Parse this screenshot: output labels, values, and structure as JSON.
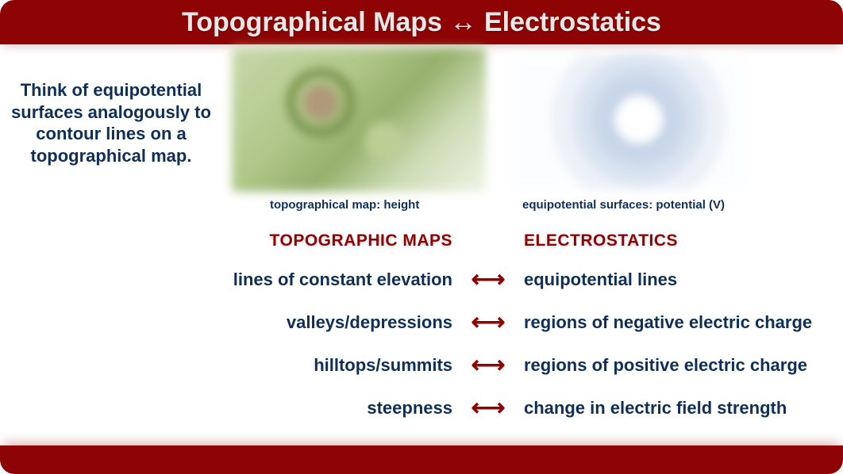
{
  "colors": {
    "bar_bg": "#8e0404",
    "bar_text": "#e8e8e8",
    "navy": "#0f2f56",
    "maroon": "#8e0404",
    "arrow": "#8e0404"
  },
  "title": "Topographical Maps ↔ Electrostatics",
  "intro": "Think of equipotential surfaces analogously to contour lines on a topographical map.",
  "captions": {
    "left": "topographical map:  height",
    "right": "equipotential surfaces:  potential (V)"
  },
  "headers": {
    "left": "TOPOGRAPHIC MAPS",
    "right": "ELECTROSTATICS"
  },
  "rows": [
    {
      "left": "lines of constant elevation",
      "right": "equipotential lines"
    },
    {
      "left": "valleys/depressions",
      "right": "regions of negative electric charge"
    },
    {
      "left": "hilltops/summits",
      "right": "regions of positive electric charge"
    },
    {
      "left": "steepness",
      "right": "change in electric field strength"
    }
  ],
  "arrow_glyph": "⟷"
}
